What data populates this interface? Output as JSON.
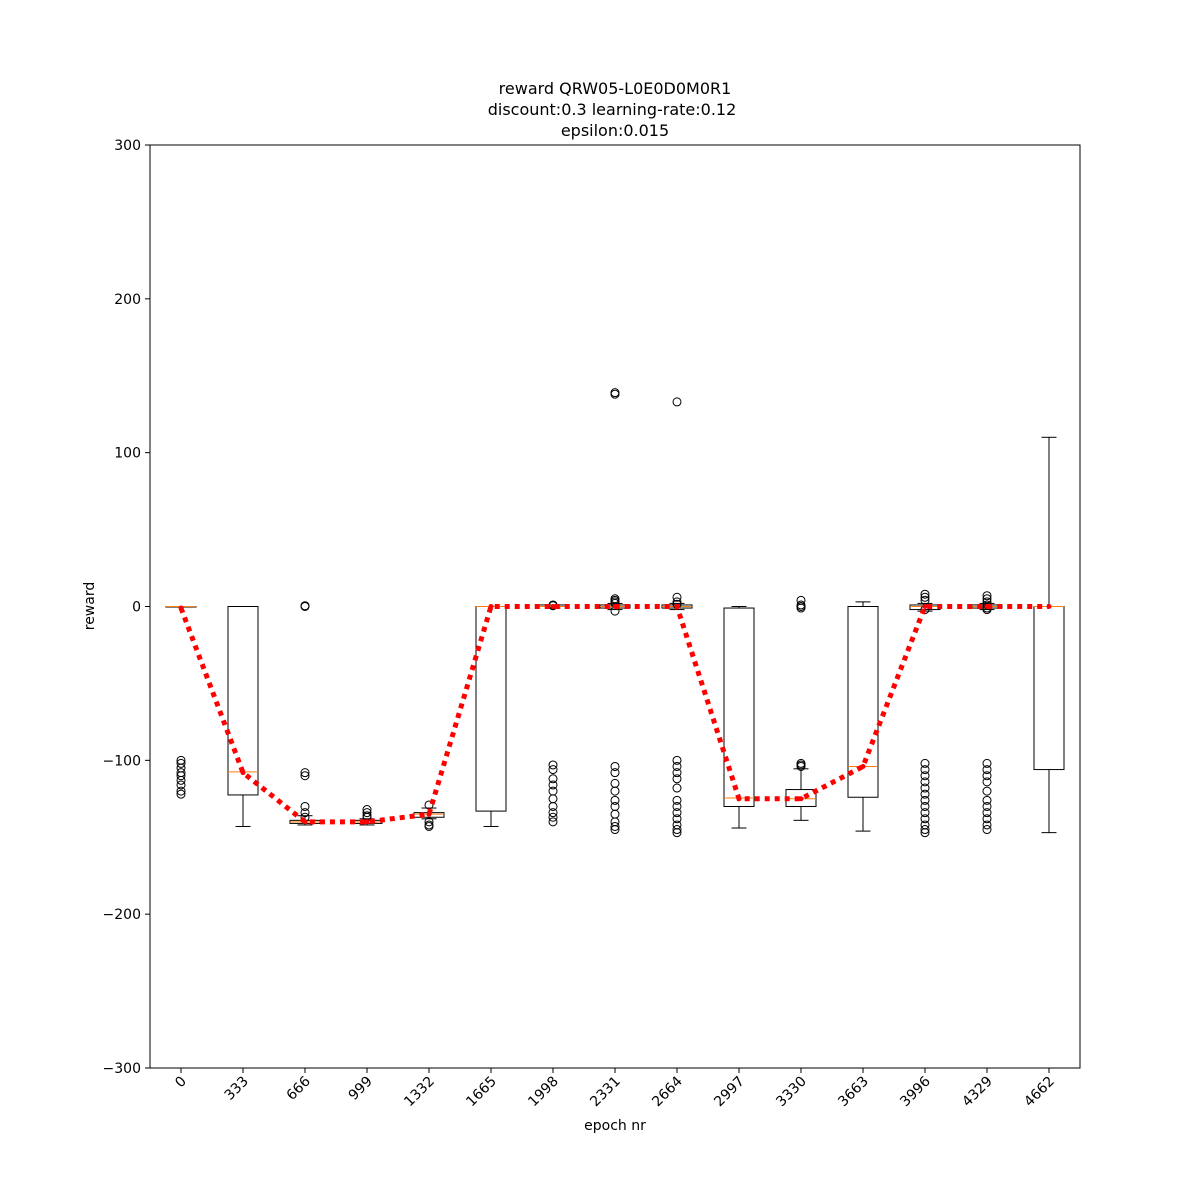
{
  "chart_data": {
    "type": "box",
    "title": [
      "reward QRW05-L0E0D0M0R1",
      "discount:0.3 learning-rate:0.12",
      "epsilon:0.015"
    ],
    "x_label": "epoch nr",
    "y_label": "reward",
    "categories": [
      "0",
      "333",
      "666",
      "999",
      "1332",
      "1665",
      "1998",
      "2331",
      "2664",
      "2997",
      "3330",
      "3663",
      "3996",
      "4329",
      "4662"
    ],
    "whislo": [
      0,
      -143,
      -142,
      -142,
      -138,
      -143,
      -1,
      -2,
      -2,
      -144,
      -139,
      -146,
      -3,
      -2,
      -147
    ],
    "q1": [
      0,
      -122.5,
      -141,
      -141,
      -137,
      -133,
      0,
      -1,
      -1,
      -130,
      -130,
      -124,
      -2,
      -1,
      -106
    ],
    "med": [
      0,
      -107.5,
      -140,
      -140,
      -135,
      0,
      0,
      0,
      0,
      -124.5,
      -125,
      -104,
      0,
      0,
      0
    ],
    "q3": [
      0,
      0,
      -139,
      -139,
      -134,
      0,
      1,
      1,
      1,
      -1,
      -119,
      0,
      1,
      1,
      0
    ],
    "whishi": [
      0,
      0,
      -136,
      -138,
      -131,
      0,
      1,
      2,
      2,
      0,
      -105.5,
      3,
      2,
      2,
      110
    ],
    "fliers": [
      [
        -100,
        -102,
        -105,
        -108,
        -110,
        -113,
        -116,
        -120,
        -122
      ],
      [],
      [
        0,
        0.5,
        -108,
        -110,
        -130,
        -134,
        -137
      ],
      [
        -132,
        -134,
        -136,
        -137
      ],
      [
        -129,
        -140,
        -142,
        -143
      ],
      [],
      [
        1,
        0.5,
        -103,
        -106,
        -112,
        -116,
        -120,
        -125,
        -130,
        -134,
        -137,
        -140
      ],
      [
        139,
        138,
        5,
        4,
        3,
        2,
        -3,
        -104,
        -108,
        -115,
        -120,
        -126,
        -130,
        -135,
        -140,
        -143,
        -145
      ],
      [
        133,
        6,
        3,
        1.5,
        -100,
        -104,
        -108,
        -112,
        -118,
        -126,
        -130,
        -134,
        -138,
        -142,
        -145,
        -147
      ],
      [],
      [
        4,
        1,
        0,
        -1,
        -102,
        -103,
        -104
      ],
      [],
      [
        8,
        6,
        4,
        -2,
        -102,
        -106,
        -110,
        -114,
        -118,
        -122,
        -126,
        -130,
        -134,
        -138,
        -142,
        -145,
        -147
      ],
      [
        7,
        5,
        3,
        1,
        -1,
        -2,
        -102,
        -106,
        -110,
        -114,
        -120,
        -126,
        -130,
        -134,
        -138,
        -142,
        -145
      ],
      []
    ],
    "means": [
      -1,
      -108,
      -140,
      -140,
      -135,
      0,
      0,
      0,
      0,
      -125,
      -125,
      -104,
      0,
      0,
      0
    ],
    "box_color": "#000000",
    "median_color": "#ff7f0e",
    "mean_color": "#ff0000",
    "ylim": [
      -300,
      300
    ],
    "yticks": [
      {
        "value": -300,
        "label": "−300"
      },
      {
        "value": -200,
        "label": "−200"
      },
      {
        "value": -100,
        "label": "−100"
      },
      0,
      100,
      200,
      300
    ]
  }
}
